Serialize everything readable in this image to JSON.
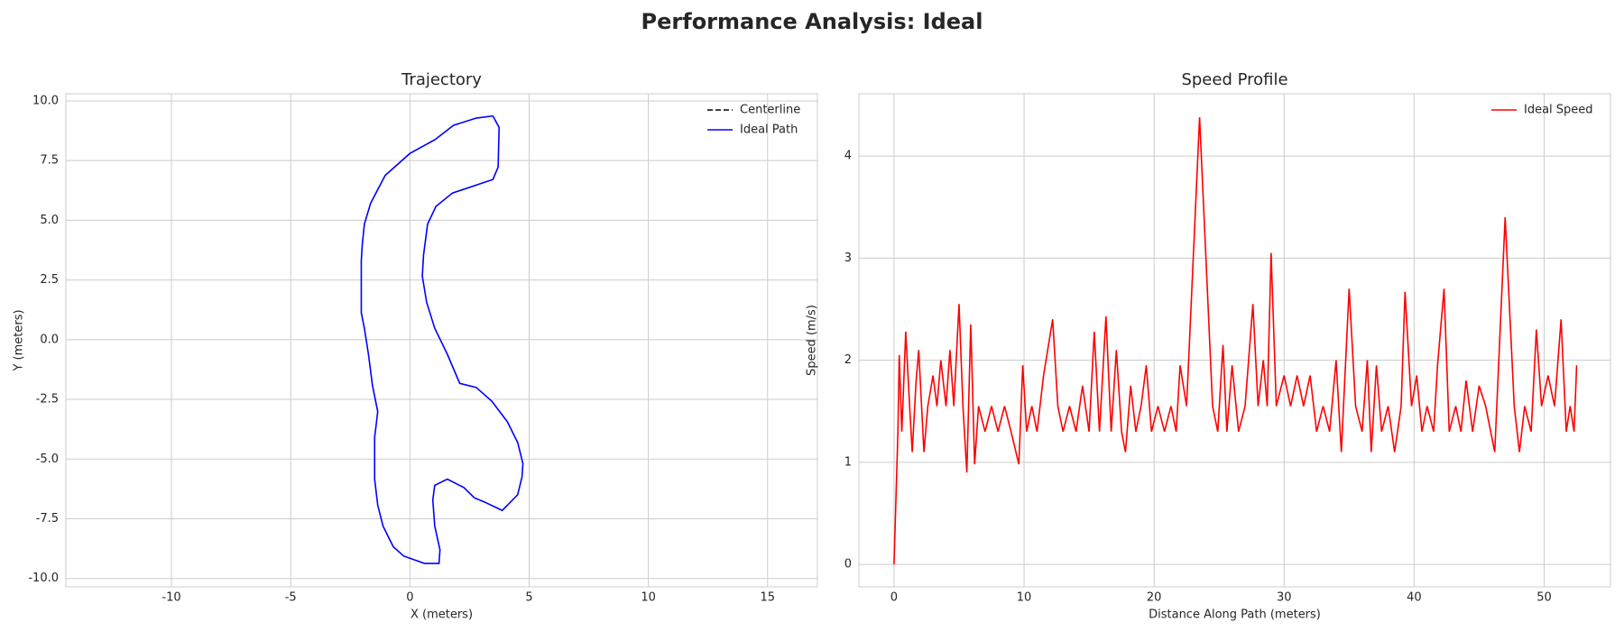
{
  "title": "Performance Analysis: Ideal",
  "chart_data": [
    {
      "type": "line",
      "title": "Trajectory",
      "xlabel": "X (meters)",
      "ylabel": "Y (meters)",
      "xlim": [
        -14.43,
        17.09
      ],
      "ylim": [
        -10.35,
        10.3
      ],
      "xticks": [
        -10,
        -5,
        0,
        5,
        10,
        15
      ],
      "yticks": [
        {
          "value": -10,
          "label": "-10.0"
        },
        -7.5,
        {
          "value": -5,
          "label": "-5.0"
        },
        -2.5,
        {
          "value": 0,
          "label": "0.0"
        },
        2.5,
        {
          "value": 5,
          "label": "5.0"
        },
        7.5,
        {
          "value": 10,
          "label": "10.0"
        }
      ],
      "grid": true,
      "legend": "upper right",
      "series": [
        {
          "name": "Centerline",
          "color": "#000000",
          "linestyle": "dashed",
          "x": [],
          "y": []
        },
        {
          "name": "Ideal Path",
          "color": "#0000ff",
          "linestyle": "solid",
          "x": [
            3.48,
            3.74,
            3.7,
            3.48,
            1.78,
            1.09,
            0.74,
            0.57,
            0.52,
            0.7,
            1.04,
            1.57,
            2.09,
            2.78,
            3.43,
            4.09,
            4.52,
            4.74,
            4.7,
            4.52,
            4.09,
            3.87,
            3.13,
            2.7,
            2.26,
            1.57,
            1.04,
            0.96,
            1.04,
            1.26,
            1.22,
            0.61,
            -0.26,
            -0.7,
            -1.13,
            -1.35,
            -1.48,
            -1.48,
            -1.35,
            -1.57,
            -1.74,
            -1.91,
            -2.04,
            -2.04,
            -2.0,
            -1.91,
            -1.65,
            -1.04,
            0.0,
            1.04,
            1.83,
            2.78,
            3.48
          ],
          "y": [
            9.37,
            8.89,
            7.23,
            6.71,
            6.14,
            5.58,
            4.84,
            3.53,
            2.66,
            1.57,
            0.48,
            -0.61,
            -1.83,
            -2.0,
            -2.57,
            -3.44,
            -4.31,
            -5.19,
            -5.75,
            -6.49,
            -6.93,
            -7.15,
            -6.8,
            -6.62,
            -6.19,
            -5.84,
            -6.1,
            -6.71,
            -7.8,
            -8.8,
            -9.37,
            -9.37,
            -9.06,
            -8.67,
            -7.8,
            -6.93,
            -5.84,
            -4.1,
            -3.01,
            -1.92,
            -0.61,
            0.48,
            1.13,
            3.31,
            3.97,
            4.84,
            5.71,
            6.88,
            7.8,
            8.37,
            8.98,
            9.28,
            9.37
          ]
        }
      ]
    },
    {
      "type": "line",
      "title": "Speed Profile",
      "xlabel": "Distance Along Path (meters)",
      "ylabel": "Speed (m/s)",
      "xlim": [
        -2.7,
        55.1
      ],
      "ylim": [
        -0.22,
        4.61
      ],
      "xticks": [
        0,
        10,
        20,
        30,
        40,
        50
      ],
      "yticks": [
        0,
        1,
        2,
        3,
        4
      ],
      "grid": true,
      "legend": "upper right",
      "series": [
        {
          "name": "Ideal Speed",
          "color": "#ff0000",
          "linestyle": "solid",
          "x": [
            0,
            0.3,
            0.4,
            0.6,
            0.9,
            1.2,
            1.4,
            1.7,
            1.9,
            2.3,
            2.6,
            3,
            3.3,
            3.6,
            4,
            4.3,
            4.6,
            5,
            5.3,
            5.6,
            5.9,
            6.2,
            6.5,
            7,
            7.5,
            8,
            8.5,
            9,
            9.6,
            9.9,
            10.2,
            10.6,
            11,
            11.5,
            12.2,
            12.6,
            13,
            13.5,
            14,
            14.5,
            15,
            15.4,
            15.8,
            16.3,
            16.7,
            17.1,
            17.5,
            17.8,
            18.2,
            18.6,
            19,
            19.4,
            19.8,
            20.3,
            20.8,
            21.3,
            21.7,
            22,
            22.5,
            23.5,
            24.5,
            24.9,
            25.3,
            25.6,
            26,
            26.5,
            27,
            27.6,
            28,
            28.4,
            28.7,
            29,
            29.4,
            30,
            30.5,
            31,
            31.5,
            32,
            32.5,
            33,
            33.5,
            34,
            34.4,
            35,
            35.5,
            36,
            36.4,
            36.7,
            37.1,
            37.5,
            38,
            38.5,
            39,
            39.3,
            39.8,
            40.2,
            40.6,
            41,
            41.5,
            41.8,
            42.3,
            42.7,
            43.2,
            43.6,
            44,
            44.5,
            45,
            45.5,
            46.2,
            47,
            47.7,
            48.1,
            48.5,
            49,
            49.4,
            49.8,
            50.3,
            50.8,
            51.3,
            51.7,
            52,
            52.3,
            52.5
          ],
          "y": [
            0,
            1.3,
            2.05,
            1.3,
            2.28,
            1.55,
            1.1,
            1.8,
            2.1,
            1.1,
            1.55,
            1.85,
            1.55,
            2.0,
            1.55,
            2.1,
            1.55,
            2.55,
            1.55,
            0.9,
            2.35,
            0.98,
            1.55,
            1.3,
            1.55,
            1.3,
            1.55,
            1.3,
            0.98,
            1.95,
            1.3,
            1.55,
            1.3,
            1.85,
            2.4,
            1.55,
            1.3,
            1.55,
            1.3,
            1.75,
            1.3,
            2.28,
            1.3,
            2.43,
            1.3,
            2.1,
            1.3,
            1.1,
            1.75,
            1.3,
            1.55,
            1.95,
            1.3,
            1.55,
            1.3,
            1.55,
            1.3,
            1.95,
            1.55,
            4.38,
            1.55,
            1.3,
            2.15,
            1.3,
            1.95,
            1.3,
            1.55,
            2.55,
            1.55,
            2.0,
            1.55,
            3.05,
            1.55,
            1.85,
            1.55,
            1.85,
            1.55,
            1.85,
            1.3,
            1.55,
            1.3,
            2.0,
            1.1,
            2.7,
            1.55,
            1.3,
            2.0,
            1.1,
            1.95,
            1.3,
            1.55,
            1.1,
            1.55,
            2.67,
            1.55,
            1.85,
            1.3,
            1.55,
            1.3,
            1.95,
            2.7,
            1.3,
            1.55,
            1.3,
            1.8,
            1.3,
            1.75,
            1.55,
            1.1,
            3.4,
            1.55,
            1.1,
            1.55,
            1.3,
            2.3,
            1.55,
            1.85,
            1.55,
            2.4,
            1.3,
            1.55,
            1.3,
            1.95
          ]
        }
      ]
    }
  ]
}
